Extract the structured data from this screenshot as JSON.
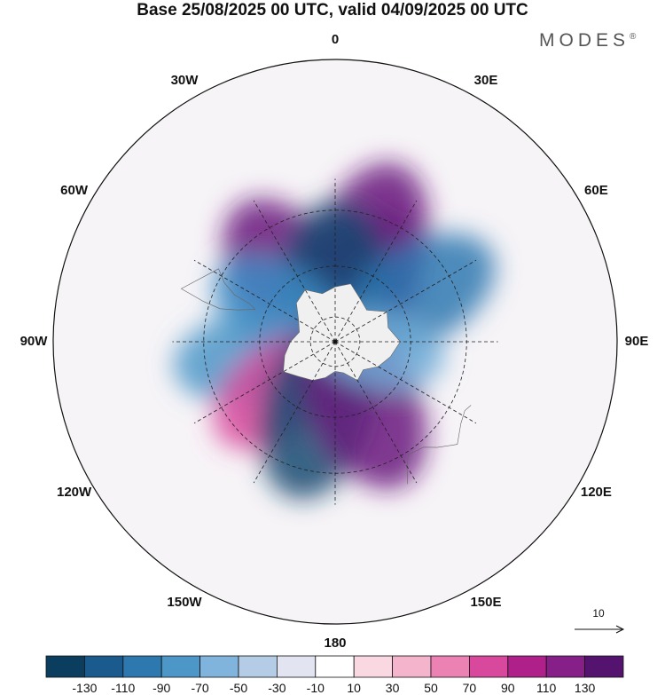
{
  "title": "Base 25/08/2025 00 UTC, valid 04/09/2025 00 UTC",
  "brand": {
    "name": "MODES",
    "mark": "®"
  },
  "map": {
    "projection": "south-polar-stereographic",
    "longitude_labels": [
      "0",
      "30E",
      "60E",
      "90E",
      "120E",
      "150E",
      "180",
      "150W",
      "120W",
      "90W",
      "60W",
      "30W"
    ],
    "land_color": "#f0f0f0"
  },
  "anomaly_centers": [
    {
      "lon": -35,
      "lat": -60,
      "value": 130,
      "color": "#6a1a7e"
    },
    {
      "lon": 20,
      "lat": -52,
      "value": 130,
      "color": "#6a1a7e"
    },
    {
      "lon": 25,
      "lat": -68,
      "value": 130,
      "color": "#6a1a7e"
    },
    {
      "lon": 0,
      "lat": -70,
      "value": -130,
      "color": "#154a72"
    },
    {
      "lon": -60,
      "lat": -65,
      "value": -90,
      "color": "#3c8cc4"
    },
    {
      "lon": 60,
      "lat": -52,
      "value": -110,
      "color": "#2e78b0"
    },
    {
      "lon": -100,
      "lat": -55,
      "value": -90,
      "color": "#4c96c8"
    },
    {
      "lon": -130,
      "lat": -60,
      "value": 90,
      "color": "#d8489c"
    },
    {
      "lon": -165,
      "lat": -62,
      "value": -130,
      "color": "#154a72"
    },
    {
      "lon": 155,
      "lat": -63,
      "value": 130,
      "color": "#6a1a7e"
    },
    {
      "lon": 100,
      "lat": -72,
      "value": -70,
      "color": "#70acd6"
    }
  ],
  "reference_vector": {
    "label": "10",
    "length_units": 10
  },
  "colorbar": {
    "ticks": [
      "-130",
      "-110",
      "-90",
      "-70",
      "-50",
      "-30",
      "-10",
      "10",
      "30",
      "50",
      "70",
      "90",
      "110",
      "130"
    ],
    "colors": [
      "#0b3d5e",
      "#1a5a8c",
      "#2e78b0",
      "#4c96c8",
      "#80b4dc",
      "#b4cce6",
      "#e2e4f2",
      "#ffffff",
      "#fad8e2",
      "#f3b4cc",
      "#ec82b4",
      "#d8489c",
      "#b0208a",
      "#862088",
      "#54136e"
    ]
  }
}
